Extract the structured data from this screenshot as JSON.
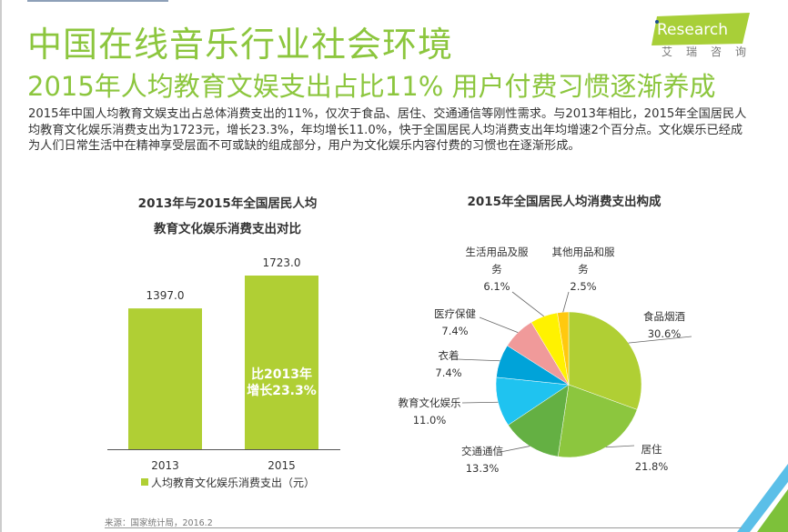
{
  "header": {
    "title": "中国在线音乐行业社会环境",
    "subtitle": "2015年人均教育文娱支出占比11%  用户付费习惯逐渐养成",
    "logo_text": "iResearch",
    "logo_cn": "艾瑞咨询"
  },
  "body_text": "2015年中国人均教育文娱支出占总体消费支出的11%，仅次于食品、居住、交通通信等刚性需求。与2013年相比，2015年全国居民人均教育文化娱乐消费支出为1723元，增长23.3%，年均增长11.0%，快于全国居民人均消费支出年均增速2个百分点。文化娱乐已经成为人们日常生活中在精神享受层面不可或缺的组成部分，用户为文化娱乐内容付费的习惯也在逐渐形成。",
  "source": "来源：国家统计局，2016.2",
  "colors": {
    "accent": "#8cc63e",
    "bar": "#b0cf34"
  },
  "chart_data": [
    {
      "type": "bar",
      "title": "2013年与2015年全国居民人均\n教育文化娱乐消费支出对比",
      "title_lines": [
        "2013年与2015年全国居民人均",
        "教育文化娱乐消费支出对比"
      ],
      "categories": [
        "2013",
        "2015"
      ],
      "values": [
        1397.0,
        1723.0
      ],
      "data_labels": [
        "1397.0",
        "1723.0"
      ],
      "annotation_lines": [
        "比2013年",
        "增长23.3%"
      ],
      "legend": "人均教育文化娱乐消费支出（元）",
      "legend_placement": "bottom",
      "grid": false
    },
    {
      "type": "pie",
      "title": "2015年全国居民人均消费支出构成",
      "slices": [
        {
          "label": "食品烟酒",
          "value": 30.6,
          "text": "30.6%",
          "color": "#b0cf34"
        },
        {
          "label": "居住",
          "value": 21.8,
          "text": "21.8%",
          "color": "#8cc63e"
        },
        {
          "label": "交通通信",
          "value": 13.3,
          "text": "13.3%",
          "color": "#64b043"
        },
        {
          "label": "教育文化娱乐",
          "value": 11.0,
          "text": "11.0%",
          "color": "#1fc3f0"
        },
        {
          "label": "衣着",
          "value": 7.4,
          "text": "7.4%",
          "color": "#00a3d9"
        },
        {
          "label": "医疗保健",
          "value": 7.4,
          "text": "7.4%",
          "color": "#f09a9a"
        },
        {
          "label": "生活用品及服务",
          "value": 6.1,
          "text": "6.1%",
          "color": "#fff200"
        },
        {
          "label": "其他用品和服务",
          "value": 2.5,
          "text": "2.5%",
          "color": "#ffc90e"
        }
      ]
    }
  ]
}
